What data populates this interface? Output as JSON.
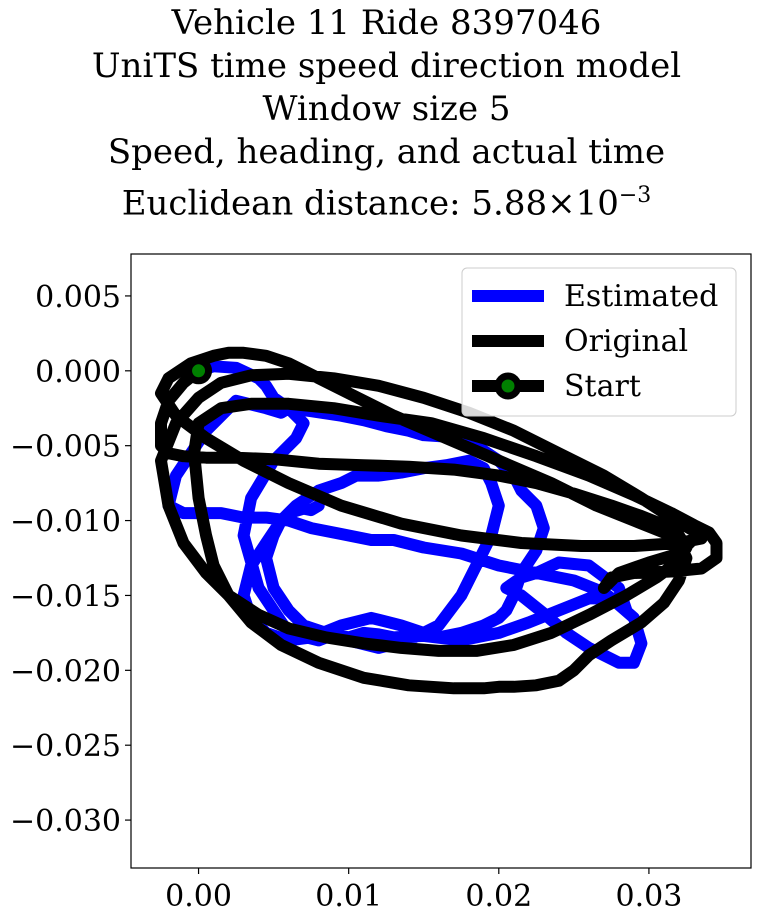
{
  "title": {
    "line1": "Vehicle 11 Ride 8397046",
    "line2": "UniTS time speed direction model",
    "line3": "Window size 5",
    "line4": "Speed, heading, and actual time",
    "line5_prefix": "Euclidean distance: 5.88",
    "line5_times": "×",
    "line5_base": "10",
    "line5_exp": "−3"
  },
  "chart_data": {
    "type": "line",
    "title": "Vehicle 11 Ride 8397046 / UniTS time speed direction model / Window size 5 / Speed, heading, and actual time / Euclidean distance: 5.88×10^-3",
    "xlim": [
      -0.0045,
      0.0368
    ],
    "ylim": [
      -0.0332,
      0.0078
    ],
    "xticks": [
      0.0,
      0.01,
      0.02,
      0.03
    ],
    "xtick_labels": [
      "0.00",
      "0.01",
      "0.02",
      "0.03"
    ],
    "yticks": [
      0.005,
      0.0,
      -0.005,
      -0.01,
      -0.015,
      -0.02,
      -0.025,
      -0.03
    ],
    "ytick_labels": [
      "0.005",
      "0.000",
      "−0.005",
      "−0.010",
      "−0.015",
      "−0.020",
      "−0.025",
      "−0.030"
    ],
    "grid": false,
    "legend_position": "top-right",
    "series": [
      {
        "name": "Estimated",
        "color": "#0000ff",
        "x": [
          0.0,
          0.001,
          0.0025,
          0.004,
          0.0045,
          0.005,
          0.006,
          0.007,
          0.0065,
          0.005,
          0.0035,
          0.003,
          0.004,
          0.006,
          0.008,
          0.009,
          0.01,
          0.011,
          0.012,
          0.013,
          0.015,
          0.0175,
          0.02,
          0.022,
          0.024,
          0.026,
          0.0275,
          0.029,
          0.0295,
          0.029,
          0.028,
          0.027,
          0.026,
          0.0245,
          0.023,
          0.0215,
          0.0205,
          0.0215,
          0.0225,
          0.024,
          0.026,
          0.028,
          0.0285,
          0.027,
          0.025,
          0.0225,
          0.02,
          0.0175,
          0.015,
          0.013,
          0.0115,
          0.0095,
          0.0075,
          0.006,
          0.0045,
          0.003,
          0.0015,
          0.0005,
          -0.001,
          -0.002,
          -0.0015,
          0.0005,
          0.0025,
          0.0045,
          0.0055,
          0.006,
          0.0075,
          0.0095,
          0.011,
          0.0125,
          0.014,
          0.015,
          0.0165,
          0.0185,
          0.02,
          0.021,
          0.0215,
          0.0225,
          0.023,
          0.0225,
          0.0215,
          0.021,
          0.0205,
          0.02,
          0.019,
          0.0175,
          0.016,
          0.015,
          0.0135,
          0.0115,
          0.0095,
          0.0075,
          0.006,
          0.0045,
          0.0035,
          0.003,
          0.0035,
          0.0045,
          0.0055,
          0.0065,
          0.008,
          0.0095,
          0.0105,
          0.012,
          0.0135,
          0.015,
          0.0165,
          0.018,
          0.019,
          0.0195,
          0.02,
          0.0195,
          0.0185,
          0.0175,
          0.016,
          0.014,
          0.012,
          0.01,
          0.0085,
          0.007,
          0.006,
          0.005,
          0.0045,
          0.005,
          0.0055,
          0.006,
          0.007,
          0.0075,
          0.008
        ],
        "y": [
          0.0,
          0.0003,
          0.0002,
          -0.0005,
          -0.001,
          -0.0018,
          -0.0025,
          -0.0035,
          -0.0045,
          -0.006,
          -0.0085,
          -0.011,
          -0.0145,
          -0.0175,
          -0.018,
          -0.0176,
          -0.0178,
          -0.0175,
          -0.0176,
          -0.0178,
          -0.0177,
          -0.018,
          -0.0175,
          -0.0168,
          -0.016,
          -0.0152,
          -0.0152,
          -0.0165,
          -0.0182,
          -0.0195,
          -0.0195,
          -0.019,
          -0.0185,
          -0.0175,
          -0.0162,
          -0.015,
          -0.0145,
          -0.0138,
          -0.0135,
          -0.0128,
          -0.013,
          -0.0145,
          -0.016,
          -0.0148,
          -0.014,
          -0.0135,
          -0.013,
          -0.0122,
          -0.0118,
          -0.0113,
          -0.0113,
          -0.0109,
          -0.0105,
          -0.01,
          -0.0098,
          -0.0098,
          -0.0095,
          -0.0095,
          -0.0095,
          -0.009,
          -0.007,
          -0.004,
          -0.002,
          -0.0025,
          -0.0028,
          -0.0025,
          -0.0027,
          -0.003,
          -0.0033,
          -0.0037,
          -0.004,
          -0.0043,
          -0.0044,
          -0.005,
          -0.006,
          -0.007,
          -0.008,
          -0.009,
          -0.0105,
          -0.012,
          -0.0135,
          -0.015,
          -0.016,
          -0.0165,
          -0.017,
          -0.0175,
          -0.0178,
          -0.0175,
          -0.017,
          -0.0165,
          -0.017,
          -0.0178,
          -0.018,
          -0.0175,
          -0.0165,
          -0.015,
          -0.013,
          -0.0115,
          -0.01,
          -0.009,
          -0.008,
          -0.0075,
          -0.007,
          -0.007,
          -0.0068,
          -0.0065,
          -0.0063,
          -0.006,
          -0.0065,
          -0.0075,
          -0.009,
          -0.011,
          -0.013,
          -0.015,
          -0.017,
          -0.018,
          -0.0185,
          -0.018,
          -0.0175,
          -0.017,
          -0.016,
          -0.0145,
          -0.0125,
          -0.011,
          -0.01,
          -0.0095,
          -0.0092,
          -0.0093,
          -0.009
        ]
      },
      {
        "name": "Original",
        "color": "#000000",
        "x": [
          0.0,
          -0.001,
          -0.002,
          -0.0025,
          -0.0025,
          -0.002,
          -0.001,
          0.0005,
          0.0025,
          0.005,
          0.008,
          0.011,
          0.014,
          0.017,
          0.02,
          0.0225,
          0.025,
          0.0275,
          0.0295,
          0.031,
          0.032,
          0.0325,
          0.032,
          0.0305,
          0.0285,
          0.026,
          0.0235,
          0.021,
          0.0185,
          0.016,
          0.0135,
          0.011,
          0.0085,
          0.006,
          0.004,
          0.002,
          0.0005,
          -0.001,
          -0.002,
          -0.0025,
          -0.0015,
          0.0,
          0.0015,
          0.0035,
          0.006,
          0.009,
          0.012,
          0.015,
          0.018,
          0.021,
          0.024,
          0.027,
          0.0295,
          0.0315,
          0.033,
          0.0335,
          0.032,
          0.029,
          0.0255,
          0.0215,
          0.0175,
          0.0135,
          0.0095,
          0.006,
          0.003,
          0.0005,
          -0.0015,
          -0.0025,
          -0.002,
          -0.0005,
          0.001,
          0.002,
          0.003,
          0.0045,
          0.006,
          0.008,
          0.01,
          0.013,
          0.0165,
          0.02,
          0.0235,
          0.0265,
          0.029,
          0.031,
          0.032,
          0.0325,
          0.032,
          0.031,
          0.0295,
          0.0275,
          0.026,
          0.025,
          0.024,
          0.0225,
          0.021,
          0.02,
          0.019,
          0.017,
          0.014,
          0.011,
          0.008,
          0.0055,
          0.0035,
          0.002,
          0.001,
          0.0005,
          0.0,
          -0.0003,
          0.0,
          0.0015,
          0.0035,
          0.006,
          0.009,
          0.012,
          0.0155,
          0.019,
          0.0225,
          0.026,
          0.029,
          0.0315,
          0.033,
          0.034,
          0.0345,
          0.0345,
          0.0335,
          0.0315,
          0.029,
          0.0275,
          0.027,
          0.028,
          0.03,
          0.032,
          0.033
        ],
        "y": [
          0.0,
          -0.0008,
          -0.002,
          -0.0035,
          -0.005,
          -0.0055,
          -0.0057,
          -0.0058,
          -0.0058,
          -0.0059,
          -0.0062,
          -0.0063,
          -0.0064,
          -0.0066,
          -0.007,
          -0.0075,
          -0.0082,
          -0.009,
          -0.0097,
          -0.0103,
          -0.011,
          -0.0118,
          -0.0127,
          -0.0138,
          -0.015,
          -0.0163,
          -0.0175,
          -0.0183,
          -0.0187,
          -0.0187,
          -0.0185,
          -0.0182,
          -0.0178,
          -0.0172,
          -0.0163,
          -0.015,
          -0.0135,
          -0.0115,
          -0.009,
          -0.006,
          -0.0035,
          -0.0018,
          -0.0008,
          -0.0003,
          -0.0002,
          -0.0005,
          -0.001,
          -0.0018,
          -0.0028,
          -0.004,
          -0.0055,
          -0.007,
          -0.0085,
          -0.0098,
          -0.0107,
          -0.0112,
          -0.0115,
          -0.0117,
          -0.0117,
          -0.0115,
          -0.011,
          -0.0102,
          -0.009,
          -0.0075,
          -0.006,
          -0.0045,
          -0.003,
          -0.0015,
          -0.0005,
          0.0005,
          0.001,
          0.0012,
          0.0012,
          0.001,
          0.0005,
          -0.0005,
          -0.0015,
          -0.003,
          -0.0045,
          -0.006,
          -0.0075,
          -0.009,
          -0.01,
          -0.0108,
          -0.0115,
          -0.0125,
          -0.014,
          -0.0155,
          -0.0168,
          -0.018,
          -0.019,
          -0.02,
          -0.0207,
          -0.021,
          -0.0211,
          -0.0211,
          -0.0212,
          -0.0212,
          -0.021,
          -0.0205,
          -0.0195,
          -0.0183,
          -0.0168,
          -0.015,
          -0.013,
          -0.011,
          -0.0085,
          -0.0055,
          -0.0035,
          -0.0025,
          -0.0022,
          -0.0022,
          -0.0025,
          -0.003,
          -0.0035,
          -0.0045,
          -0.0057,
          -0.007,
          -0.0083,
          -0.0095,
          -0.0103,
          -0.0108,
          -0.0115,
          -0.0125,
          -0.0132,
          -0.0134,
          -0.0135,
          -0.0138,
          -0.0145,
          -0.0135,
          -0.0128,
          -0.0122,
          -0.0112
        ]
      }
    ],
    "start_marker": {
      "name": "Start",
      "x": 0.0,
      "y": 0.0,
      "color": "#008000",
      "edgecolor": "#000000"
    }
  }
}
